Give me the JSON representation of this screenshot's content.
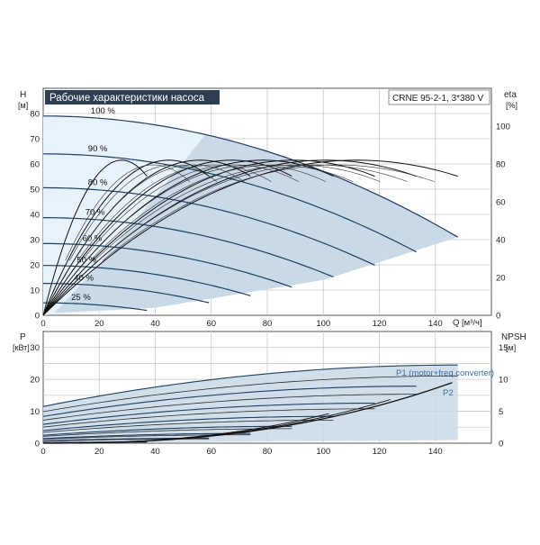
{
  "title": "Рабочие характеристики насоса",
  "model": "CRNE 95-2-1, 3*380 V",
  "colors": {
    "title_bg": "#2e3e52",
    "title_fg": "#ffffff",
    "band_light": "#e8f2fb",
    "band_mid": "#c9d9e8",
    "curve": "#1f3f63",
    "eta_curve": "#111111",
    "grid": "#c8c8c8",
    "legend_text": "#3a6da0"
  },
  "chart_data": [
    {
      "name": "head",
      "type": "line",
      "y_axis_unit_label": "H",
      "y_axis_unit": "[м]",
      "y2_axis_unit_label": "eta",
      "y2_axis_unit": "[%]",
      "x_axis_label": "Q [м³/ч]",
      "xlim": [
        0,
        160
      ],
      "ylim": [
        0,
        90
      ],
      "y2lim": [
        0,
        120
      ],
      "x_ticks": [
        "0",
        "20",
        "40",
        "60",
        "80",
        "100",
        "120",
        "140"
      ],
      "y_ticks": [
        "0",
        "10",
        "20",
        "30",
        "40",
        "50",
        "60",
        "70",
        "80"
      ],
      "y2_ticks": [
        "0",
        "20",
        "40",
        "60",
        "80",
        "100"
      ],
      "grid": true,
      "speed_labels": [
        "100 %",
        "90 %",
        "80 %",
        "70 %",
        "60 %",
        "50 %",
        "40 %",
        "25 %"
      ],
      "speed_fractions": [
        1.0,
        0.9,
        0.8,
        0.7,
        0.6,
        0.5,
        0.4,
        0.25
      ],
      "head_curve_100": {
        "shutoff": 79,
        "q_max": 148,
        "h_at_qmax": 31
      },
      "eta_peak": 82,
      "eta_peak_q_at_100": 112
    },
    {
      "name": "power",
      "type": "line",
      "y_axis_unit_label": "P",
      "y_axis_unit": "[кВт]",
      "y2_axis_unit_label": "NPSH",
      "y2_axis_unit": "[м]",
      "xlim": [
        0,
        160
      ],
      "ylim": [
        0,
        35
      ],
      "y2lim": [
        0,
        17.5
      ],
      "y_ticks": [
        "0",
        "10",
        "20",
        "30"
      ],
      "y2_ticks": [
        "0",
        "5",
        "10",
        "15"
      ],
      "grid": true,
      "series_labels": [
        "P1 (motor+freq.converter)",
        "P2"
      ],
      "p1_curve_100": {
        "p_at_0": 11.5,
        "p_at_qmax": 24.5,
        "q_max": 148
      },
      "npsh_curve": {
        "q_start": 60,
        "q_end": 146,
        "npsh_end": 9.5
      }
    }
  ]
}
